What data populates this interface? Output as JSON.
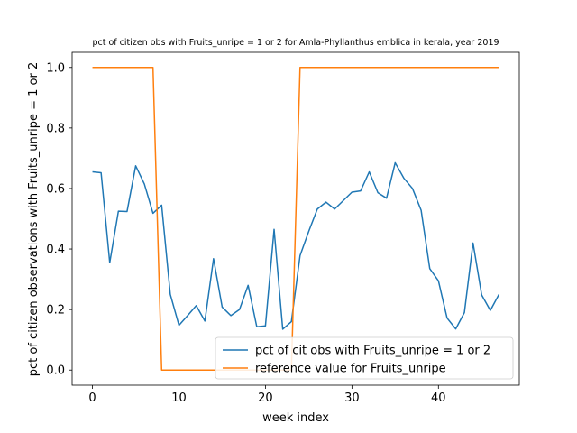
{
  "chart_data": {
    "type": "line",
    "title": "pct of citizen obs with Fruits_unripe = 1 or 2 for Amla-Phyllanthus emblica in kerala, year 2019",
    "xlabel": "week index",
    "ylabel": "pct of citizen observations with Fruits_unripe = 1 or 2",
    "xlim": [
      -2.35,
      49.35
    ],
    "ylim": [
      -0.05,
      1.05
    ],
    "xticks": [
      0,
      10,
      20,
      30,
      40
    ],
    "yticks": [
      0.0,
      0.2,
      0.4,
      0.6,
      0.8,
      1.0
    ],
    "ytick_labels": [
      "0.0",
      "0.2",
      "0.4",
      "0.6",
      "0.8",
      "1.0"
    ],
    "grid": false,
    "legend_position": "lower-right",
    "series": [
      {
        "name": "pct of cit obs with Fruits_unripe = 1 or 2",
        "color": "#1f77b4",
        "x": [
          0,
          1,
          2,
          3,
          4,
          5,
          6,
          7,
          8,
          9,
          10,
          11,
          12,
          13,
          14,
          15,
          16,
          17,
          18,
          19,
          20,
          21,
          22,
          23,
          24,
          25,
          26,
          27,
          28,
          29,
          30,
          31,
          32,
          33,
          34,
          35,
          36,
          37,
          38,
          39,
          40,
          41,
          42,
          43,
          44,
          45,
          46,
          47
        ],
        "y": [
          0.655,
          0.652,
          0.355,
          0.525,
          0.524,
          0.675,
          0.615,
          0.518,
          0.545,
          0.25,
          0.148,
          0.18,
          0.213,
          0.162,
          0.368,
          0.208,
          0.18,
          0.2,
          0.28,
          0.143,
          0.146,
          0.465,
          0.135,
          0.16,
          0.378,
          0.458,
          0.532,
          0.555,
          0.532,
          0.56,
          0.588,
          0.592,
          0.655,
          0.586,
          0.568,
          0.685,
          0.634,
          0.6,
          0.528,
          0.335,
          0.295,
          0.172,
          0.136,
          0.19,
          0.42,
          0.248,
          0.197,
          0.25
        ]
      },
      {
        "name": "reference value for Fruits_unripe",
        "color": "#ff7f0e",
        "x": [
          0,
          1,
          2,
          3,
          4,
          5,
          6,
          7,
          8,
          9,
          10,
          11,
          12,
          13,
          14,
          15,
          16,
          17,
          18,
          19,
          20,
          21,
          22,
          23,
          24,
          25,
          26,
          27,
          28,
          29,
          30,
          31,
          32,
          33,
          34,
          35,
          36,
          37,
          38,
          39,
          40,
          41,
          42,
          43,
          44,
          45,
          46,
          47
        ],
        "y": [
          1,
          1,
          1,
          1,
          1,
          1,
          1,
          1,
          0,
          0,
          0,
          0,
          0,
          0,
          0,
          0,
          0,
          0,
          0,
          0,
          0,
          0,
          0,
          0,
          1,
          1,
          1,
          1,
          1,
          1,
          1,
          1,
          1,
          1,
          1,
          1,
          1,
          1,
          1,
          1,
          1,
          1,
          1,
          1,
          1,
          1,
          1,
          1
        ]
      }
    ]
  }
}
